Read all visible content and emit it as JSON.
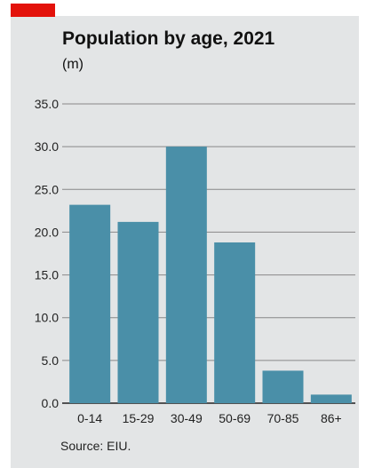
{
  "header": {
    "accent_color": "#e3120b",
    "title": "Population by age, 2021",
    "unit": "(m)"
  },
  "footer": {
    "source": "Source: EIU."
  },
  "colors": {
    "bar": "#4a8fa8",
    "gridline": "#888888",
    "background": "#e3e5e6"
  },
  "chart_data": {
    "type": "bar",
    "title": "Population by age, 2021",
    "ylabel": "(m)",
    "categories": [
      "0-14",
      "15-29",
      "30-49",
      "50-69",
      "70-85",
      "86+"
    ],
    "values": [
      23.2,
      21.2,
      30.0,
      18.8,
      3.8,
      1.0
    ],
    "ylim": [
      0,
      35
    ],
    "yticks": [
      "0.0",
      "5.0",
      "10.0",
      "15.0",
      "20.0",
      "25.0",
      "30.0",
      "35.0"
    ],
    "grid": true,
    "legend": "none"
  }
}
